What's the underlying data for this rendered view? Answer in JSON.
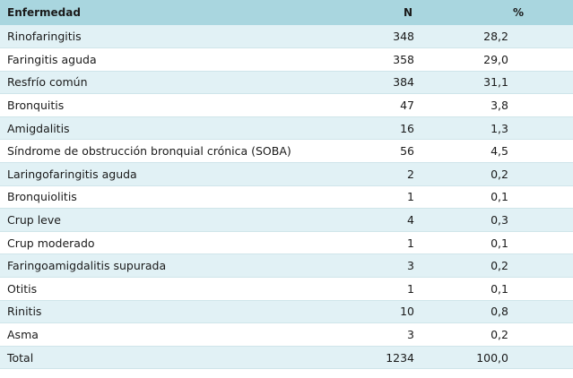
{
  "headers": {
    "name": "Enfermedad",
    "n": "N",
    "pct": "%"
  },
  "rows": [
    {
      "name": "Rinofaringitis",
      "n": "348",
      "pct": "28,2"
    },
    {
      "name": "Faringitis aguda",
      "n": "358",
      "pct": "29,0"
    },
    {
      "name": "Resfrío común",
      "n": "384",
      "pct": "31,1"
    },
    {
      "name": "Bronquitis",
      "n": "47",
      "pct": "3,8"
    },
    {
      "name": "Amigdalitis",
      "n": "16",
      "pct": "1,3"
    },
    {
      "name": "Síndrome de obstrucción bronquial crónica (SOBA)",
      "n": "56",
      "pct": "4,5"
    },
    {
      "name": "Laringofaringitis aguda",
      "n": "2",
      "pct": "0,2"
    },
    {
      "name": "Bronquiolitis",
      "n": "1",
      "pct": "0,1"
    },
    {
      "name": "Crup leve",
      "n": "4",
      "pct": "0,3"
    },
    {
      "name": "Crup moderado",
      "n": "1",
      "pct": "0,1"
    },
    {
      "name": "Faringoamigdalitis supurada",
      "n": "3",
      "pct": "0,2"
    },
    {
      "name": "Otitis",
      "n": "1",
      "pct": "0,1"
    },
    {
      "name": "Rinitis",
      "n": "10",
      "pct": "0,8"
    },
    {
      "name": "Asma",
      "n": "3",
      "pct": "0,2"
    },
    {
      "name": "Total",
      "n": "1234",
      "pct": "100,0"
    }
  ]
}
